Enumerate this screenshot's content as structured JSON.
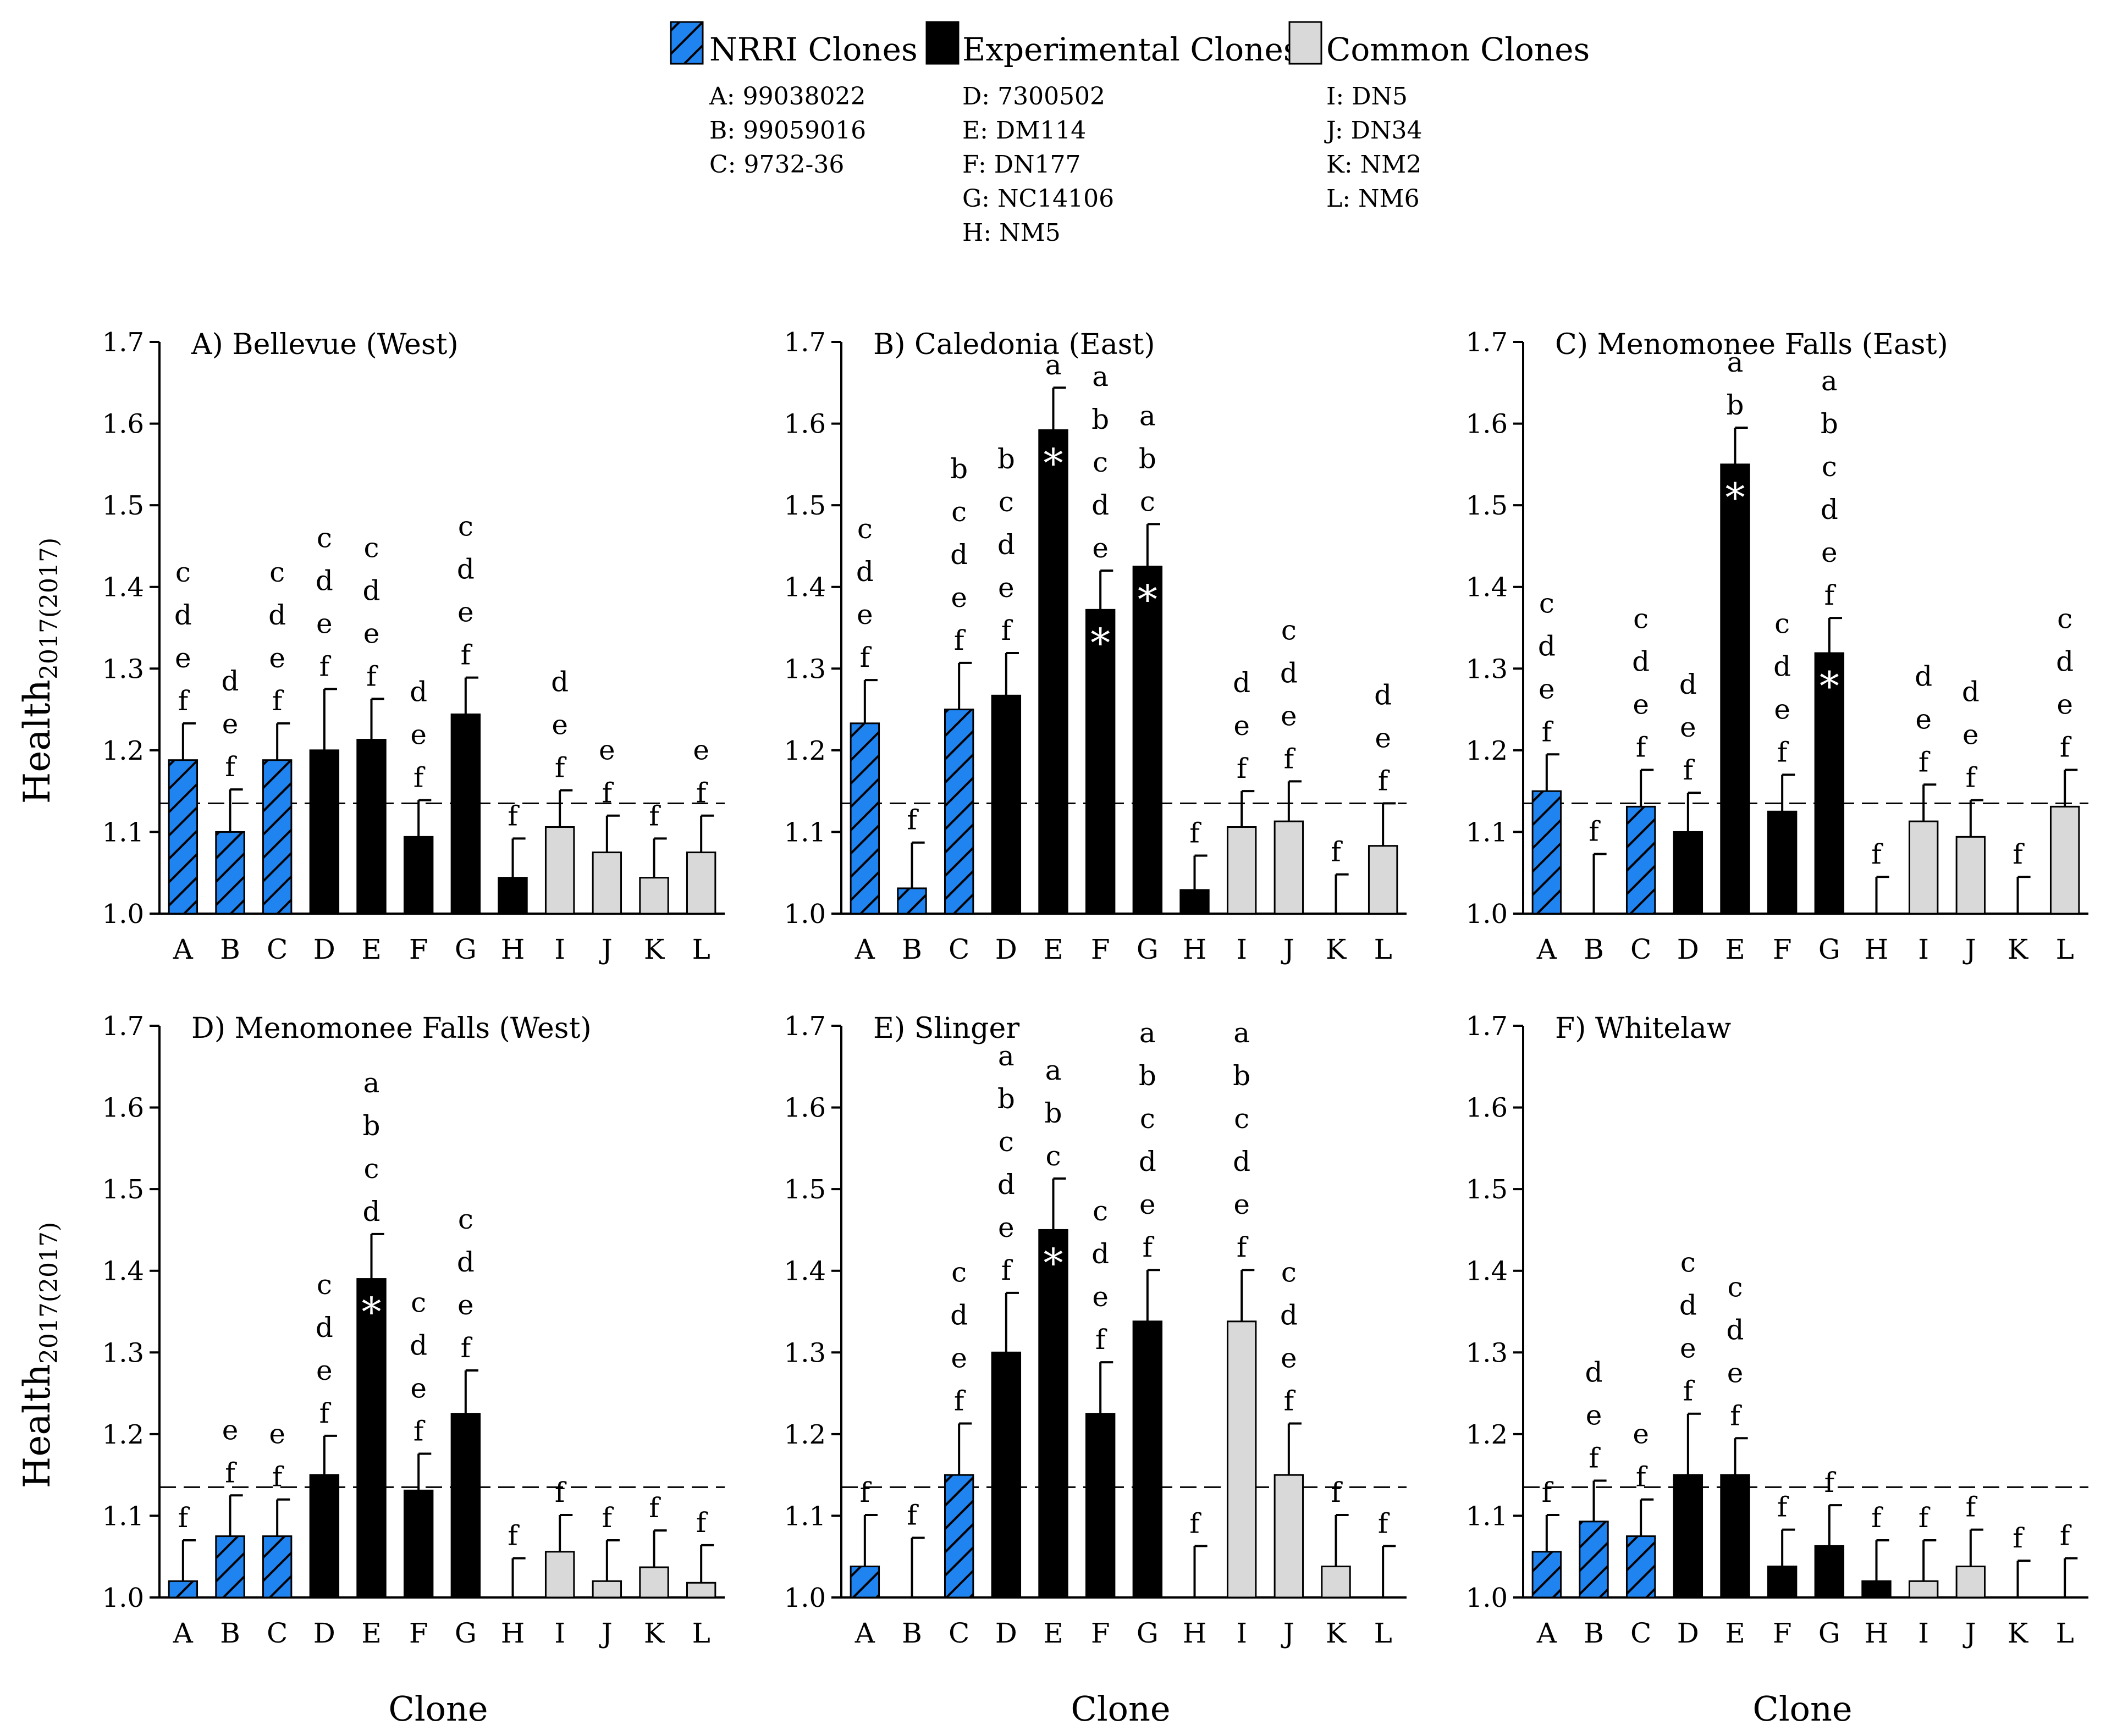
{
  "legend": {
    "groups": [
      {
        "label": "NRRI Clones",
        "style": "hatch",
        "clones": [
          "A: 99038022",
          "B: 99059016",
          "C: 9732-36"
        ]
      },
      {
        "label": "Experimental Clones",
        "style": "solid",
        "clones": [
          "D: 7300502",
          "E: DM114",
          "F: DN177",
          "G: NC14106",
          "H: NM5"
        ]
      },
      {
        "label": "Common Clones",
        "style": "gray",
        "clones": [
          "I: DN5",
          "J: DN34",
          "K: NM2",
          "L: NM6"
        ]
      }
    ]
  },
  "colors": {
    "nrri": "#1f83f0",
    "experimental": "#000000",
    "common": "#d9d9d9"
  },
  "y_label": "Health",
  "y_label_sub": "2017(2017)",
  "x_label": "Clone",
  "chart_data": [
    {
      "type": "bar",
      "title": "A) Bellevue (West)",
      "categories": [
        "A",
        "B",
        "C",
        "D",
        "E",
        "F",
        "G",
        "H",
        "I",
        "J",
        "K",
        "L"
      ],
      "groups": [
        "nrri",
        "nrri",
        "nrri",
        "exp",
        "exp",
        "exp",
        "exp",
        "exp",
        "common",
        "common",
        "common",
        "common"
      ],
      "values": [
        1.188,
        1.1,
        1.188,
        1.2,
        1.213,
        1.094,
        1.244,
        1.044,
        1.106,
        1.075,
        1.044,
        1.075
      ],
      "errors": [
        0.045,
        0.052,
        0.045,
        0.075,
        0.05,
        0.045,
        0.045,
        0.048,
        0.045,
        0.045,
        0.048,
        0.045
      ],
      "letters": [
        "cdef",
        "def",
        "cdef",
        "cdef",
        "cdef",
        "def",
        "cdef",
        "f",
        "def",
        "ef",
        "f",
        "ef"
      ],
      "stars": [
        false,
        false,
        false,
        false,
        false,
        false,
        false,
        false,
        false,
        false,
        false,
        false
      ],
      "reference": 1.135,
      "ylim": [
        1.0,
        1.7
      ],
      "yticks": [
        "1.0",
        "1.1",
        "1.2",
        "1.3",
        "1.4",
        "1.5",
        "1.6",
        "1.7"
      ]
    },
    {
      "type": "bar",
      "title": "B) Caledonia (East)",
      "categories": [
        "A",
        "B",
        "C",
        "D",
        "E",
        "F",
        "G",
        "H",
        "I",
        "J",
        "K",
        "L"
      ],
      "groups": [
        "nrri",
        "nrri",
        "nrri",
        "exp",
        "exp",
        "exp",
        "exp",
        "exp",
        "common",
        "common",
        "common",
        "common"
      ],
      "values": [
        1.233,
        1.031,
        1.25,
        1.267,
        1.592,
        1.372,
        1.425,
        1.029,
        1.106,
        1.113,
        1.0,
        1.083
      ],
      "errors": [
        0.053,
        0.056,
        0.057,
        0.052,
        0.052,
        0.048,
        0.052,
        0.042,
        0.044,
        0.049,
        0.048,
        0.052
      ],
      "letters": [
        "cdef",
        "f",
        "bcdef",
        "bcdef",
        "a",
        "abcde",
        "abc",
        "f",
        "def",
        "cdef",
        "f",
        "def"
      ],
      "stars": [
        false,
        false,
        false,
        false,
        true,
        true,
        true,
        false,
        false,
        false,
        false,
        false
      ],
      "reference": 1.135,
      "ylim": [
        1.0,
        1.7
      ],
      "yticks": [
        "1.0",
        "1.1",
        "1.2",
        "1.3",
        "1.4",
        "1.5",
        "1.6",
        "1.7"
      ]
    },
    {
      "type": "bar",
      "title": "C) Menomonee Falls (East)",
      "categories": [
        "A",
        "B",
        "C",
        "D",
        "E",
        "F",
        "G",
        "H",
        "I",
        "J",
        "K",
        "L"
      ],
      "groups": [
        "nrri",
        "nrri",
        "nrri",
        "exp",
        "exp",
        "exp",
        "exp",
        "exp",
        "common",
        "common",
        "common",
        "common"
      ],
      "values": [
        1.15,
        1.0,
        1.131,
        1.1,
        1.55,
        1.125,
        1.319,
        1.0,
        1.113,
        1.094,
        1.0,
        1.131
      ],
      "errors": [
        0.045,
        0.073,
        0.045,
        0.048,
        0.045,
        0.045,
        0.043,
        0.045,
        0.045,
        0.045,
        0.045,
        0.045
      ],
      "letters": [
        "cdef",
        "f",
        "cdef",
        "def",
        "ab",
        "cdef",
        "abcdef",
        "f",
        "def",
        "def",
        "f",
        "cdef"
      ],
      "stars": [
        false,
        false,
        false,
        false,
        true,
        false,
        true,
        false,
        false,
        false,
        false,
        false
      ],
      "reference": 1.135,
      "ylim": [
        1.0,
        1.7
      ],
      "yticks": [
        "1.0",
        "1.1",
        "1.2",
        "1.3",
        "1.4",
        "1.5",
        "1.6",
        "1.7"
      ]
    },
    {
      "type": "bar",
      "title": "D) Menomonee Falls (West)",
      "categories": [
        "A",
        "B",
        "C",
        "D",
        "E",
        "F",
        "G",
        "H",
        "I",
        "J",
        "K",
        "L"
      ],
      "groups": [
        "nrri",
        "nrri",
        "nrri",
        "exp",
        "exp",
        "exp",
        "exp",
        "exp",
        "common",
        "common",
        "common",
        "common"
      ],
      "values": [
        1.02,
        1.075,
        1.075,
        1.15,
        1.39,
        1.131,
        1.225,
        1.0,
        1.056,
        1.02,
        1.037,
        1.018
      ],
      "errors": [
        0.05,
        0.05,
        0.045,
        0.048,
        0.055,
        0.045,
        0.053,
        0.048,
        0.045,
        0.05,
        0.045,
        0.046
      ],
      "letters": [
        "f",
        "ef",
        "ef",
        "cdef",
        "abcd",
        "cdef",
        "cdef",
        "f",
        "f",
        "f",
        "f",
        "f"
      ],
      "stars": [
        false,
        false,
        false,
        false,
        true,
        false,
        false,
        false,
        false,
        false,
        false,
        false
      ],
      "reference": 1.135,
      "ylim": [
        1.0,
        1.7
      ],
      "yticks": [
        "1.0",
        "1.1",
        "1.2",
        "1.3",
        "1.4",
        "1.5",
        "1.6",
        "1.7"
      ]
    },
    {
      "type": "bar",
      "title": "E) Slinger",
      "categories": [
        "A",
        "B",
        "C",
        "D",
        "E",
        "F",
        "G",
        "H",
        "I",
        "J",
        "K",
        "L"
      ],
      "groups": [
        "nrri",
        "nrri",
        "nrri",
        "exp",
        "exp",
        "exp",
        "exp",
        "exp",
        "common",
        "common",
        "common",
        "common"
      ],
      "values": [
        1.038,
        1.0,
        1.15,
        1.3,
        1.45,
        1.225,
        1.338,
        1.0,
        1.338,
        1.15,
        1.038,
        1.0
      ],
      "errors": [
        0.063,
        0.073,
        0.063,
        0.073,
        0.063,
        0.063,
        0.063,
        0.063,
        0.063,
        0.063,
        0.063,
        0.063
      ],
      "letters": [
        "f",
        "f",
        "cdef",
        "abcdef",
        "abc",
        "cdef",
        "abcdef",
        "f",
        "abcdef",
        "cdef",
        "f",
        "f"
      ],
      "stars": [
        false,
        false,
        false,
        false,
        true,
        false,
        false,
        false,
        false,
        false,
        false,
        false
      ],
      "reference": 1.135,
      "ylim": [
        1.0,
        1.7
      ],
      "yticks": [
        "1.0",
        "1.1",
        "1.2",
        "1.3",
        "1.4",
        "1.5",
        "1.6",
        "1.7"
      ]
    },
    {
      "type": "bar",
      "title": "F) Whitelaw",
      "categories": [
        "A",
        "B",
        "C",
        "D",
        "E",
        "F",
        "G",
        "H",
        "I",
        "J",
        "K",
        "L"
      ],
      "groups": [
        "nrri",
        "nrri",
        "nrri",
        "exp",
        "exp",
        "exp",
        "exp",
        "exp",
        "common",
        "common",
        "common",
        "common"
      ],
      "values": [
        1.056,
        1.093,
        1.075,
        1.15,
        1.15,
        1.038,
        1.063,
        1.02,
        1.02,
        1.038,
        1.0,
        1.0
      ],
      "errors": [
        0.045,
        0.05,
        0.045,
        0.075,
        0.045,
        0.045,
        0.05,
        0.05,
        0.05,
        0.045,
        0.045,
        0.048
      ],
      "letters": [
        "f",
        "def",
        "ef",
        "cdef",
        "cdef",
        "f",
        "f",
        "f",
        "f",
        "f",
        "f",
        "f"
      ],
      "stars": [
        false,
        false,
        false,
        false,
        false,
        false,
        false,
        false,
        false,
        false,
        false,
        false
      ],
      "reference": 1.135,
      "ylim": [
        1.0,
        1.7
      ],
      "yticks": [
        "1.0",
        "1.1",
        "1.2",
        "1.3",
        "1.4",
        "1.5",
        "1.6",
        "1.7"
      ]
    }
  ]
}
